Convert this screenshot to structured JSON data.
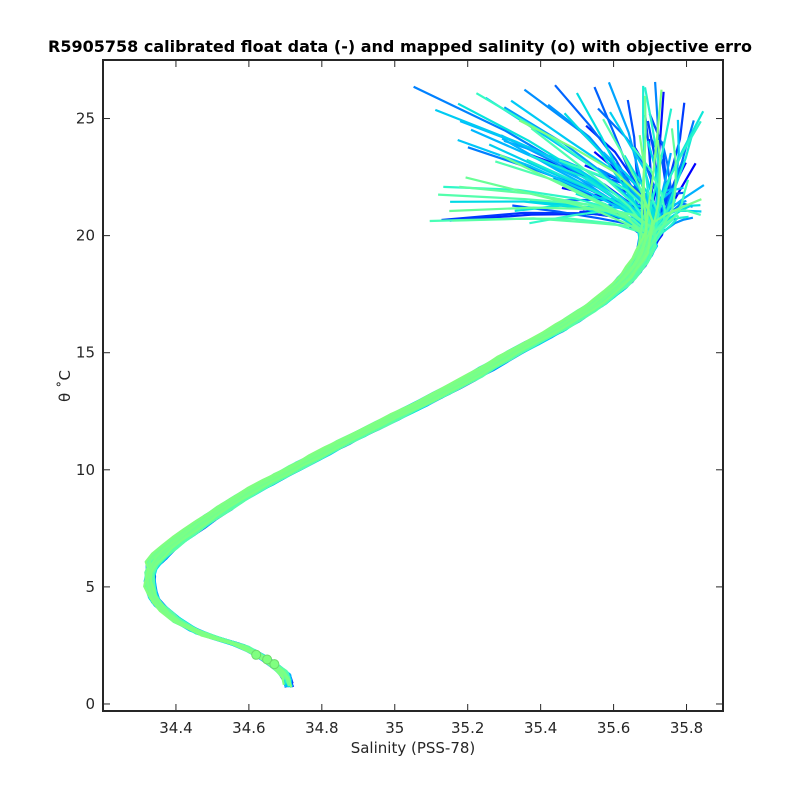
{
  "chart_data": {
    "type": "line",
    "title": "ADMT_CLASS_OUTFLOW_WMO: AR5905758 calibrated float data (-) and mapped salinity (o) with objective errors",
    "title_visible": "R5905758 calibrated float data (-) and mapped salinity (o) with objective erro",
    "xlabel": "Salinity (PSS-78)",
    "ylabel": "θ ˚C",
    "xlim": [
      34.2,
      35.9
    ],
    "ylim": [
      -0.3,
      27.5
    ],
    "xticks": [
      34.4,
      34.6,
      34.8,
      35,
      35.2,
      35.4,
      35.6,
      35.8
    ],
    "xtick_labels": [
      "34.4",
      "34.6",
      "34.8",
      "35",
      "35.2",
      "35.4",
      "35.6",
      "35.8"
    ],
    "yticks": [
      0,
      5,
      10,
      15,
      20,
      25
    ],
    "ytick_labels": [
      "0",
      "5",
      "10",
      "15",
      "20",
      "25"
    ],
    "grid": false,
    "colormap": [
      "#0000ff",
      "#0040ff",
      "#0080ff",
      "#00bfff",
      "#00e0e0",
      "#40ffbf",
      "#80ff80"
    ],
    "n_profiles": 120,
    "mean_profile": [
      {
        "theta": 0.8,
        "salinity": 34.71
      },
      {
        "theta": 1.3,
        "salinity": 34.7
      },
      {
        "theta": 2.0,
        "salinity": 34.64
      },
      {
        "theta": 2.5,
        "salinity": 34.58
      },
      {
        "theta": 3.0,
        "salinity": 34.47
      },
      {
        "theta": 3.5,
        "salinity": 34.41
      },
      {
        "theta": 4.0,
        "salinity": 34.37
      },
      {
        "theta": 4.5,
        "salinity": 34.34
      },
      {
        "theta": 5.0,
        "salinity": 34.33
      },
      {
        "theta": 5.5,
        "salinity": 34.33
      },
      {
        "theta": 6.0,
        "salinity": 34.34
      },
      {
        "theta": 6.5,
        "salinity": 34.37
      },
      {
        "theta": 7.0,
        "salinity": 34.41
      },
      {
        "theta": 8.0,
        "salinity": 34.5
      },
      {
        "theta": 9.0,
        "salinity": 34.6
      },
      {
        "theta": 10.0,
        "salinity": 34.72
      },
      {
        "theta": 11.0,
        "salinity": 34.84
      },
      {
        "theta": 12.0,
        "salinity": 34.97
      },
      {
        "theta": 13.0,
        "salinity": 35.1
      },
      {
        "theta": 14.0,
        "salinity": 35.22
      },
      {
        "theta": 15.0,
        "salinity": 35.33
      },
      {
        "theta": 16.0,
        "salinity": 35.45
      },
      {
        "theta": 17.0,
        "salinity": 35.55
      },
      {
        "theta": 18.0,
        "salinity": 35.63
      },
      {
        "theta": 19.0,
        "salinity": 35.68
      },
      {
        "theta": 20.0,
        "salinity": 35.71
      },
      {
        "theta": 20.5,
        "salinity": 35.7
      }
    ],
    "surface_spread": {
      "theta_range": [
        20.5,
        26.7
      ],
      "salinity_range": [
        35.02,
        35.85
      ]
    },
    "mapped_salinity_markers": [
      {
        "theta": 2.1,
        "salinity": 34.62
      },
      {
        "theta": 1.9,
        "salinity": 34.65
      },
      {
        "theta": 1.7,
        "salinity": 34.67
      }
    ]
  }
}
